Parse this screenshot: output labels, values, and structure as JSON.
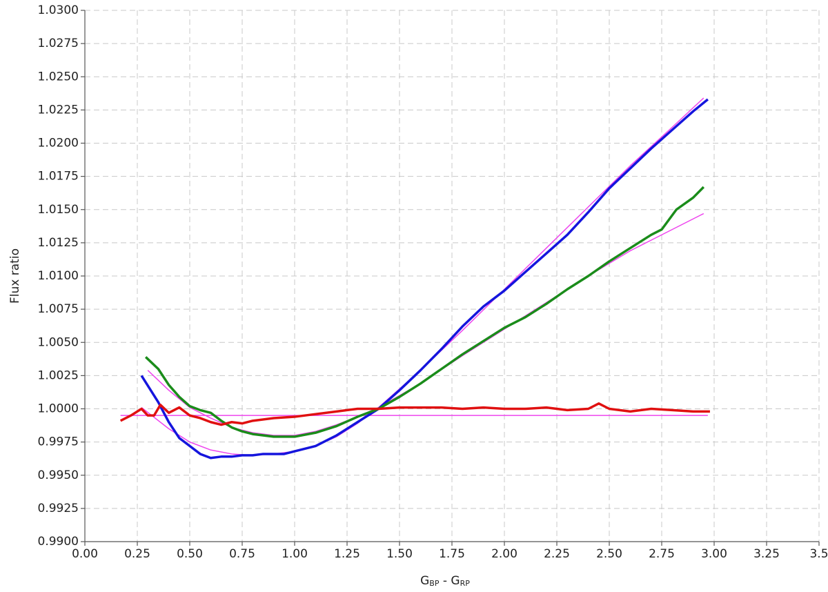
{
  "chart_data": {
    "type": "line",
    "xlabel": [
      "G",
      "BP",
      " - G",
      "RP"
    ],
    "ylabel": "Flux ratio",
    "xlim": [
      0,
      3.5
    ],
    "ylim": [
      0.99,
      1.03
    ],
    "grid": true,
    "xticks": [
      {
        "value": 0,
        "label": "0.00"
      },
      {
        "value": 0.25,
        "label": "0.25"
      },
      {
        "value": 0.5,
        "label": "0.50"
      },
      {
        "value": 0.75,
        "label": "0.75"
      },
      {
        "value": 1,
        "label": "1.00"
      },
      {
        "value": 1.25,
        "label": "1.25"
      },
      {
        "value": 1.5,
        "label": "1.50"
      },
      {
        "value": 1.75,
        "label": "1.75"
      },
      {
        "value": 2,
        "label": "2.00"
      },
      {
        "value": 2.25,
        "label": "2.25"
      },
      {
        "value": 2.5,
        "label": "2.50"
      },
      {
        "value": 2.75,
        "label": "2.75"
      },
      {
        "value": 3,
        "label": "3.00"
      },
      {
        "value": 3.25,
        "label": "3.25"
      },
      3.5
    ],
    "yticks": [
      {
        "value": 0.99,
        "label": "0.9900"
      },
      {
        "value": 0.9925,
        "label": "0.9925"
      },
      {
        "value": 0.995,
        "label": "0.9950"
      },
      {
        "value": 0.9975,
        "label": "0.9975"
      },
      {
        "value": 1,
        "label": "1.0000"
      },
      {
        "value": 1.0025,
        "label": "1.0025"
      },
      {
        "value": 1.005,
        "label": "1.0050"
      },
      {
        "value": 1.0075,
        "label": "1.0075"
      },
      {
        "value": 1.01,
        "label": "1.0100"
      },
      {
        "value": 1.0125,
        "label": "1.0125"
      },
      {
        "value": 1.015,
        "label": "1.0150"
      },
      {
        "value": 1.0175,
        "label": "1.0175"
      },
      {
        "value": 1.02,
        "label": "1.0200"
      },
      {
        "value": 1.0225,
        "label": "1.0225"
      },
      {
        "value": 1.025,
        "label": "1.0250"
      },
      {
        "value": 1.0275,
        "label": "1.0275"
      },
      {
        "value": 1.03,
        "label": "1.0300"
      }
    ],
    "series": [
      {
        "color": "#ee44ee",
        "line_width": 1.5,
        "x": [
          0.17,
          2.97
        ],
        "values": [
          0.9995,
          0.9995
        ]
      },
      {
        "color": "#ee44ee",
        "line_width": 1.5,
        "x": [
          0.27,
          0.4,
          0.5,
          0.6,
          0.7,
          0.8,
          0.9,
          1.0,
          1.1,
          1.2,
          1.3,
          1.4,
          1.6,
          1.8,
          2.0,
          2.2,
          2.4,
          2.6,
          2.8,
          2.95
        ],
        "values": [
          1.0001,
          0.9985,
          0.9975,
          0.9969,
          0.9966,
          0.9965,
          0.9966,
          0.9968,
          0.9972,
          0.9979,
          0.9989,
          1.0001,
          1.0029,
          1.0059,
          1.009,
          1.0121,
          1.0152,
          1.0183,
          1.0212,
          1.0234
        ]
      },
      {
        "color": "#ee44ee",
        "line_width": 1.5,
        "x": [
          0.3,
          0.4,
          0.5,
          0.6,
          0.7,
          0.8,
          0.9,
          1.0,
          1.1,
          1.2,
          1.3,
          1.4,
          1.6,
          1.8,
          2.0,
          2.2,
          2.4,
          2.6,
          2.8,
          2.95
        ],
        "values": [
          1.0029,
          1.0014,
          1.0001,
          0.9993,
          0.9986,
          0.9982,
          0.998,
          0.998,
          0.9983,
          0.9988,
          0.9994,
          1.0001,
          1.0019,
          1.004,
          1.006,
          1.008,
          1.01,
          1.0119,
          1.0135,
          1.0147
        ]
      },
      {
        "color": "#1515dd",
        "line_width": 3.5,
        "x": [
          0.27,
          0.35,
          0.4,
          0.45,
          0.5,
          0.55,
          0.6,
          0.65,
          0.7,
          0.75,
          0.8,
          0.85,
          0.9,
          0.95,
          1.0,
          1.1,
          1.2,
          1.3,
          1.4,
          1.5,
          1.6,
          1.7,
          1.8,
          1.9,
          2.0,
          2.1,
          2.2,
          2.3,
          2.4,
          2.5,
          2.6,
          2.7,
          2.8,
          2.9,
          2.97
        ],
        "values": [
          1.0025,
          1.0005,
          0.999,
          0.9978,
          0.9972,
          0.9966,
          0.9963,
          0.9964,
          0.9964,
          0.9965,
          0.9965,
          0.9966,
          0.9966,
          0.9966,
          0.9968,
          0.9972,
          0.998,
          0.999,
          1.0,
          1.0014,
          1.0029,
          1.0045,
          1.0062,
          1.0077,
          1.0089,
          1.0103,
          1.0117,
          1.0131,
          1.0148,
          1.0166,
          1.0181,
          1.0196,
          1.021,
          1.0224,
          1.0233
        ]
      },
      {
        "color": "#1a8c1a",
        "line_width": 3.5,
        "x": [
          0.29,
          0.35,
          0.4,
          0.45,
          0.5,
          0.55,
          0.6,
          0.65,
          0.7,
          0.75,
          0.8,
          0.9,
          1.0,
          1.1,
          1.2,
          1.3,
          1.4,
          1.5,
          1.6,
          1.7,
          1.8,
          1.9,
          2.0,
          2.1,
          2.2,
          2.3,
          2.4,
          2.5,
          2.6,
          2.7,
          2.75,
          2.82,
          2.9,
          2.95
        ],
        "values": [
          1.0039,
          1.003,
          1.0018,
          1.0009,
          1.0002,
          0.9999,
          0.9997,
          0.9991,
          0.9986,
          0.9983,
          0.9981,
          0.9979,
          0.9979,
          0.9982,
          0.9987,
          0.9994,
          1.0,
          1.0009,
          1.0019,
          1.003,
          1.0041,
          1.0051,
          1.0061,
          1.0069,
          1.0079,
          1.009,
          1.01,
          1.0111,
          1.0121,
          1.0131,
          1.0135,
          1.015,
          1.0159,
          1.0167
        ]
      },
      {
        "color": "#e01010",
        "line_width": 3.5,
        "x": [
          0.17,
          0.22,
          0.27,
          0.3,
          0.33,
          0.36,
          0.4,
          0.45,
          0.5,
          0.55,
          0.6,
          0.65,
          0.7,
          0.75,
          0.8,
          0.9,
          1.0,
          1.1,
          1.2,
          1.3,
          1.4,
          1.5,
          1.6,
          1.7,
          1.8,
          1.9,
          2.0,
          2.1,
          2.2,
          2.3,
          2.4,
          2.45,
          2.5,
          2.6,
          2.7,
          2.8,
          2.9,
          2.98
        ],
        "values": [
          0.9991,
          0.9995,
          1.0,
          0.9995,
          0.9995,
          1.0003,
          0.9997,
          1.0001,
          0.9995,
          0.9993,
          0.999,
          0.9988,
          0.999,
          0.9989,
          0.9991,
          0.9993,
          0.9994,
          0.9996,
          0.9998,
          1.0,
          1.0,
          1.0001,
          1.0001,
          1.0001,
          1.0,
          1.0001,
          1.0,
          1.0,
          1.0001,
          0.9999,
          1.0,
          1.0004,
          1.0,
          0.9998,
          1.0,
          0.9999,
          0.9998,
          0.9998
        ]
      }
    ]
  }
}
